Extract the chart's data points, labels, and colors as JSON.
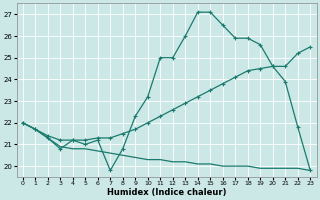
{
  "xlabel": "Humidex (Indice chaleur)",
  "xlim": [
    -0.5,
    23.5
  ],
  "ylim": [
    19.5,
    27.5
  ],
  "yticks": [
    20,
    21,
    22,
    23,
    24,
    25,
    26,
    27
  ],
  "xticks": [
    0,
    1,
    2,
    3,
    4,
    5,
    6,
    7,
    8,
    9,
    10,
    11,
    12,
    13,
    14,
    15,
    16,
    17,
    18,
    19,
    20,
    21,
    22,
    23
  ],
  "bg_color": "#cce8e6",
  "line_color": "#1a7a6e",
  "grid_color": "#ffffff",
  "line1_x": [
    0,
    1,
    2,
    3,
    4,
    5,
    6,
    7,
    8,
    9,
    10,
    11,
    12,
    13,
    14,
    15,
    16,
    17,
    18,
    19,
    20,
    21,
    22,
    23
  ],
  "line1_y": [
    22.0,
    21.7,
    21.3,
    20.8,
    21.2,
    21.0,
    21.2,
    19.8,
    20.8,
    22.3,
    23.2,
    25.0,
    25.0,
    26.0,
    27.1,
    27.1,
    26.5,
    25.9,
    25.9,
    25.6,
    24.6,
    23.9,
    21.8,
    19.8
  ],
  "line2_x": [
    0,
    1,
    2,
    3,
    4,
    5,
    6,
    7,
    8,
    9,
    10,
    11,
    12,
    13,
    14,
    15,
    16,
    17,
    18,
    19,
    20,
    21,
    22,
    23
  ],
  "line2_y": [
    22.0,
    21.7,
    21.4,
    21.2,
    21.2,
    21.2,
    21.3,
    21.3,
    21.5,
    21.7,
    22.0,
    22.3,
    22.6,
    22.9,
    23.2,
    23.5,
    23.8,
    24.1,
    24.4,
    24.5,
    24.6,
    24.6,
    25.2,
    25.5
  ],
  "line3_x": [
    0,
    1,
    2,
    3,
    4,
    5,
    6,
    7,
    8,
    9,
    10,
    11,
    12,
    13,
    14,
    15,
    16,
    17,
    18,
    19,
    20,
    21,
    22,
    23
  ],
  "line3_y": [
    22.0,
    21.7,
    21.3,
    20.9,
    20.8,
    20.8,
    20.7,
    20.6,
    20.5,
    20.4,
    20.3,
    20.3,
    20.2,
    20.2,
    20.1,
    20.1,
    20.0,
    20.0,
    20.0,
    19.9,
    19.9,
    19.9,
    19.9,
    19.8
  ]
}
